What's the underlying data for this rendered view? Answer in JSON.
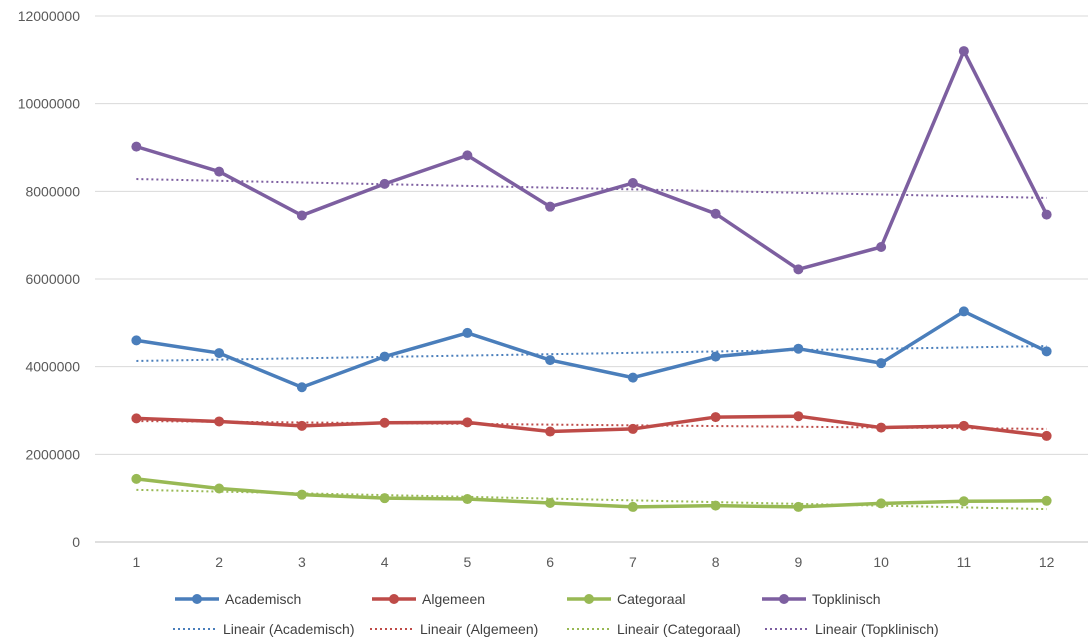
{
  "chart_data": {
    "type": "line",
    "title": "",
    "xlabel": "",
    "ylabel": "",
    "categories": [
      "1",
      "2",
      "3",
      "4",
      "5",
      "6",
      "7",
      "8",
      "9",
      "10",
      "11",
      "12"
    ],
    "ylim": [
      0,
      12000000
    ],
    "y_ticks": [
      "0",
      "2000000",
      "4000000",
      "6000000",
      "8000000",
      "10000000",
      "12000000"
    ],
    "grid": true,
    "legend_position": "bottom",
    "series": [
      {
        "name": "Academisch",
        "color": "#4a7ebb",
        "values": [
          4600000,
          4310000,
          3530000,
          4230000,
          4770000,
          4150000,
          3750000,
          4230000,
          4410000,
          4080000,
          5260000,
          4350000
        ]
      },
      {
        "name": "Algemeen",
        "color": "#be4b48",
        "values": [
          2820000,
          2750000,
          2650000,
          2720000,
          2730000,
          2520000,
          2580000,
          2850000,
          2870000,
          2610000,
          2650000,
          2420000
        ]
      },
      {
        "name": "Categoraal",
        "color": "#98b954",
        "values": [
          1440000,
          1220000,
          1080000,
          1000000,
          980000,
          890000,
          800000,
          830000,
          800000,
          880000,
          930000,
          940000
        ]
      },
      {
        "name": "Topklinisch",
        "color": "#7d5fa0",
        "values": [
          9020000,
          8450000,
          7450000,
          8170000,
          8820000,
          7650000,
          8190000,
          7490000,
          6220000,
          6730000,
          11200000,
          7470000
        ]
      }
    ],
    "trendlines": [
      {
        "name": "Lineair (Academisch)",
        "color": "#4a7ebb",
        "start": 4130000,
        "end": 4470000
      },
      {
        "name": "Lineair (Algemeen)",
        "color": "#be4b48",
        "start": 2760000,
        "end": 2580000
      },
      {
        "name": "Lineair (Categoraal)",
        "color": "#98b954",
        "start": 1190000,
        "end": 750000
      },
      {
        "name": "Lineair (Topklinisch)",
        "color": "#7d5fa0",
        "start": 8280000,
        "end": 7850000
      }
    ]
  }
}
